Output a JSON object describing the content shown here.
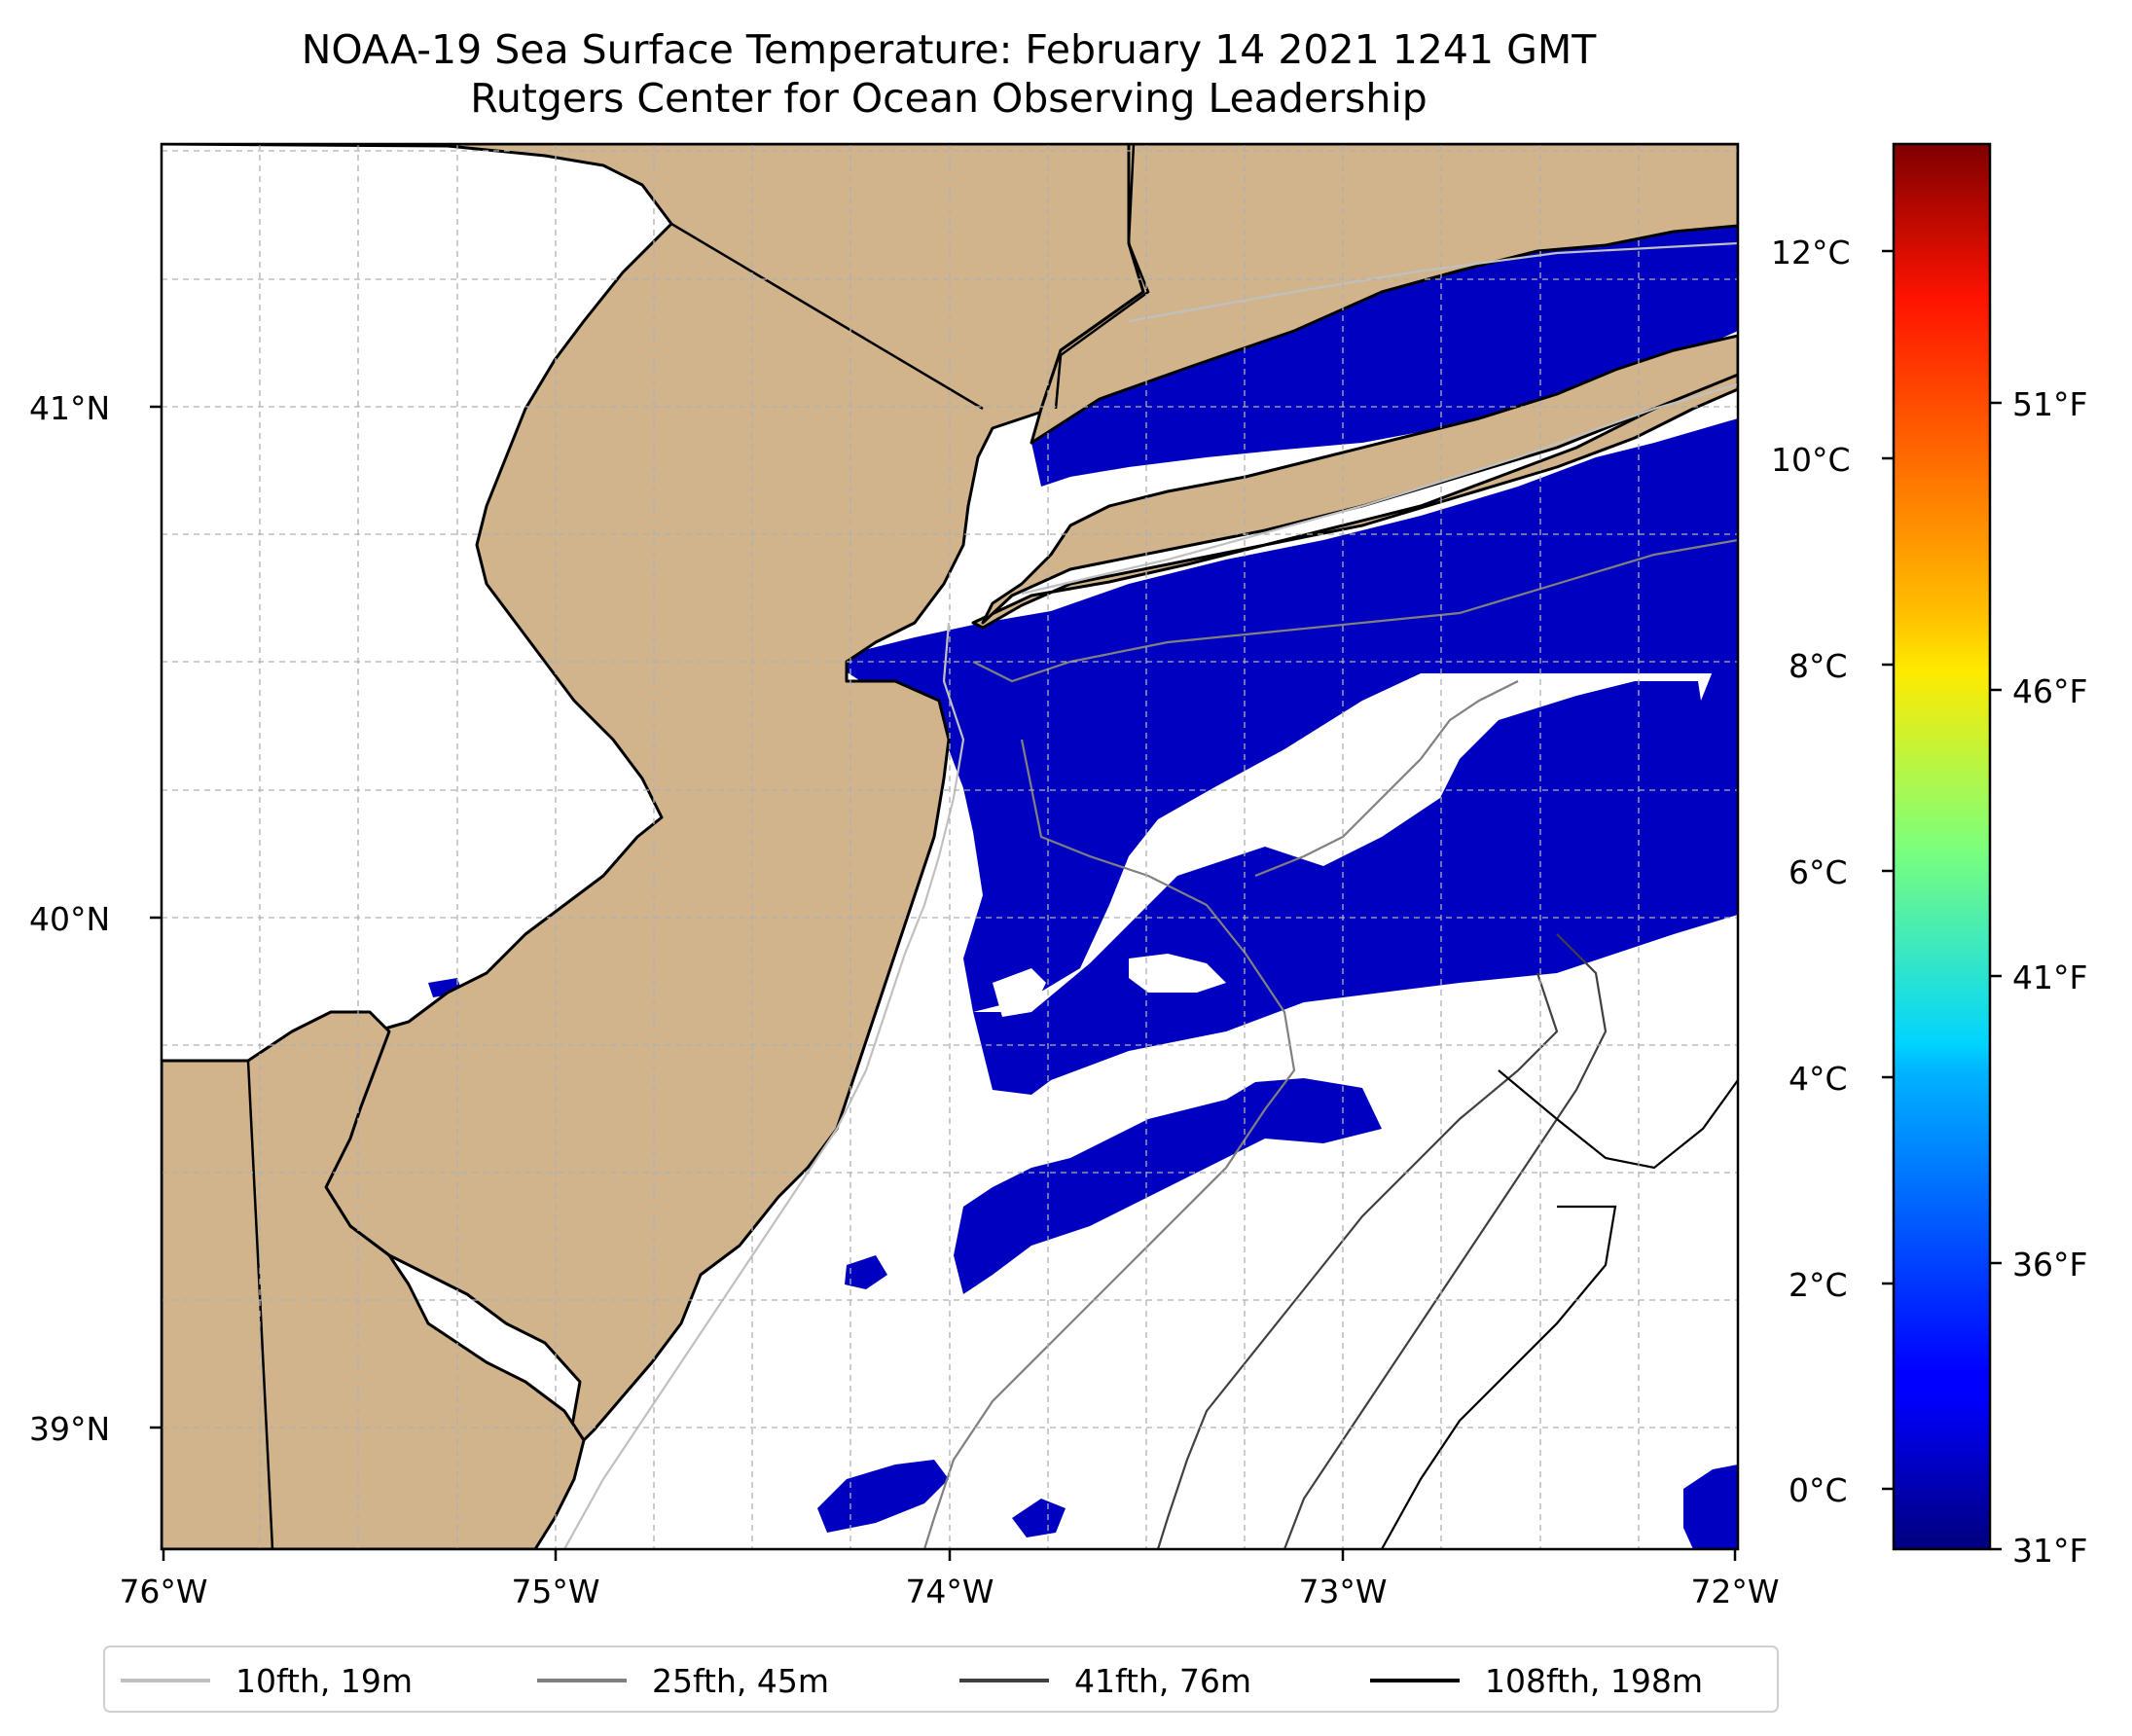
{
  "title": {
    "line1": "NOAA-19 Sea Surface Temperature: February 14 2021 1241 GMT",
    "line2": "Rutgers Center for Ocean Observing Leadership"
  },
  "map": {
    "lat_labels": [
      "41°N",
      "40°N",
      "39°N"
    ],
    "lon_labels": [
      "76°W",
      "75°W",
      "74°W",
      "73°W",
      "72°W"
    ],
    "lon_range": [
      -76,
      -72
    ],
    "lat_range": [
      38.75,
      41.5
    ],
    "colors": {
      "land": "#d2b48c",
      "ocean_no_data": "#ffffff",
      "cold_sst": "#0000c0",
      "gridline": "#b0b0b0"
    }
  },
  "colorbar": {
    "celsius_labels": [
      "12°C",
      "10°C",
      "8°C",
      "6°C",
      "4°C",
      "2°C",
      "0°C"
    ],
    "fahrenheit_labels": [
      "51°F",
      "46°F",
      "41°F",
      "36°F",
      "31°F"
    ],
    "colormap": "jet"
  },
  "legend": {
    "items": [
      {
        "label": "10fth, 19m",
        "color": "#c0c0c0"
      },
      {
        "label": "25fth, 45m",
        "color": "#808080"
      },
      {
        "label": "41fth, 76m",
        "color": "#404040"
      },
      {
        "label": "108fth, 198m",
        "color": "#000000"
      }
    ]
  }
}
